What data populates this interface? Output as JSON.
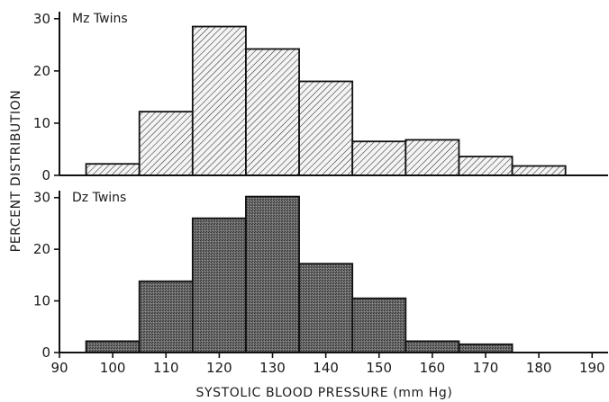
{
  "chart_data": {
    "type": "bar",
    "xlabel": "SYSTOLIC BLOOD PRESSURE (mm Hg)",
    "ylabel": "PERCENT DISTRIBUTION",
    "x_ticks": [
      "90",
      "100",
      "110",
      "120",
      "130",
      "140",
      "150",
      "160",
      "170",
      "180",
      "190"
    ],
    "y_ticks": [
      "0",
      "10",
      "20",
      "30"
    ],
    "xlim": [
      90,
      193
    ],
    "ylim": [
      0,
      31
    ],
    "bin_width": 10,
    "panels": [
      {
        "title": "Mz Twins",
        "fill": "hatched",
        "bin_starts": [
          95,
          105,
          115,
          125,
          135,
          145,
          155,
          165,
          175
        ],
        "values": [
          2.2,
          12.2,
          28.5,
          24.2,
          18.0,
          6.5,
          6.8,
          3.6,
          1.8
        ]
      },
      {
        "title": "Dz Twins",
        "fill": "stippled",
        "bin_starts": [
          95,
          105,
          115,
          125,
          135,
          145,
          155,
          165
        ],
        "values": [
          2.2,
          13.8,
          26.0,
          30.2,
          17.2,
          10.5,
          2.2,
          1.6
        ]
      }
    ]
  }
}
